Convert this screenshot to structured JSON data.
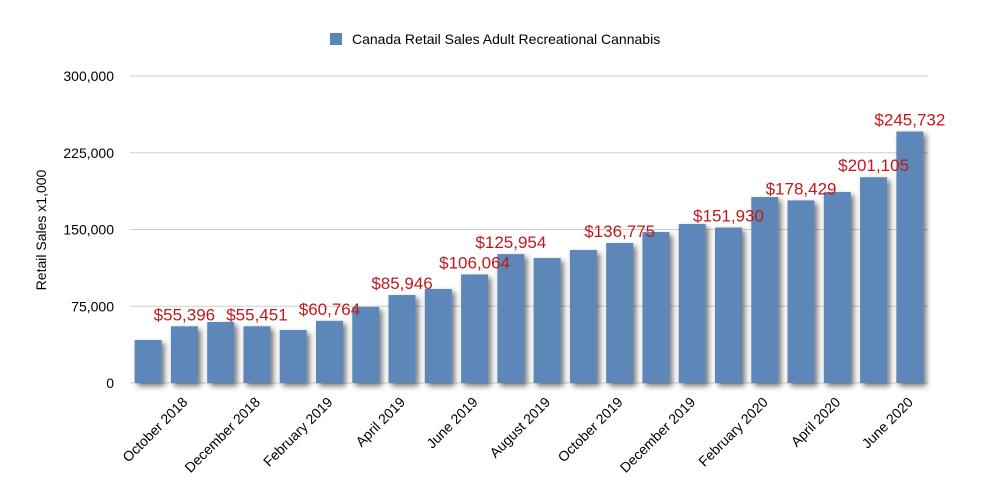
{
  "chart_data": {
    "type": "bar",
    "legend_name": "Canada Retail Sales Adult Recreational Cannabis",
    "y_label": "Retail Sales x1,000",
    "categories": [
      null,
      "October 2018",
      null,
      "December 2018",
      null,
      "February 2019",
      null,
      "April 2019",
      null,
      "June 2019",
      null,
      "August 2019",
      null,
      "October 2019",
      null,
      "December 2019",
      null,
      "February 2020",
      null,
      "April 2020",
      null,
      "June 2020"
    ],
    "values": [
      42000,
      55396,
      59600,
      55451,
      51800,
      60764,
      74300,
      85946,
      91900,
      106064,
      125954,
      122100,
      130000,
      136775,
      147500,
      155400,
      151930,
      181700,
      178429,
      186600,
      201105,
      245732
    ],
    "value_labels": [
      null,
      "$55,396",
      null,
      "$55,451",
      null,
      "$60,764",
      null,
      "$85,946",
      null,
      "$106,064",
      "$125,954",
      null,
      null,
      "$136,775",
      null,
      null,
      "$151,930",
      null,
      "$178,429",
      null,
      "$201,105",
      "$245,732"
    ],
    "color": "#5b87b8",
    "label_color": "#c0191c",
    "ylim": [
      0,
      300000
    ],
    "yticks": [
      0,
      {
        "value": 75000,
        "label": "75,000"
      },
      {
        "value": 150000,
        "label": "150,000"
      },
      {
        "value": 225000,
        "label": "225,000"
      },
      {
        "value": 300000,
        "label": "300,000"
      }
    ],
    "grid": true
  }
}
